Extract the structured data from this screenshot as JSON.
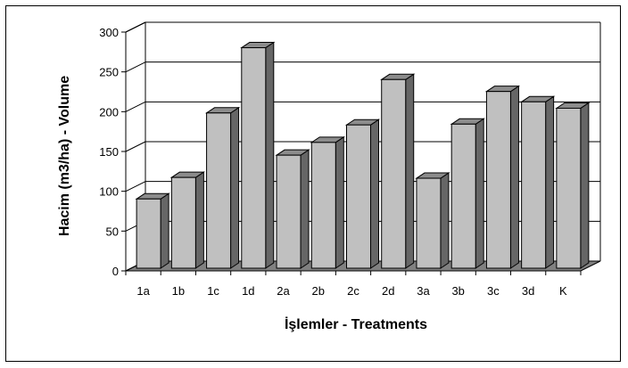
{
  "chart_data": {
    "type": "bar",
    "xlabel": "İşlemler - Treatments",
    "ylabel": "Hacim (m3/ha) - Volume",
    "categories": [
      "1a",
      "1b",
      "1c",
      "1d",
      "2a",
      "2b",
      "2c",
      "2d",
      "3a",
      "3b",
      "3c",
      "3d",
      "K"
    ],
    "values": [
      87,
      114,
      195,
      277,
      142,
      158,
      180,
      237,
      113,
      181,
      222,
      209,
      201
    ],
    "ylim": [
      0,
      300
    ],
    "yticks": [
      "0",
      "50",
      "100",
      "150",
      "200",
      "250",
      "300"
    ],
    "grid": true,
    "three_d": true,
    "colors": {
      "bar_front": "#c0c0c0",
      "bar_side": "#666666",
      "bar_top": "#8c8c8c",
      "floor": "#808080",
      "grid": "#000000"
    }
  }
}
